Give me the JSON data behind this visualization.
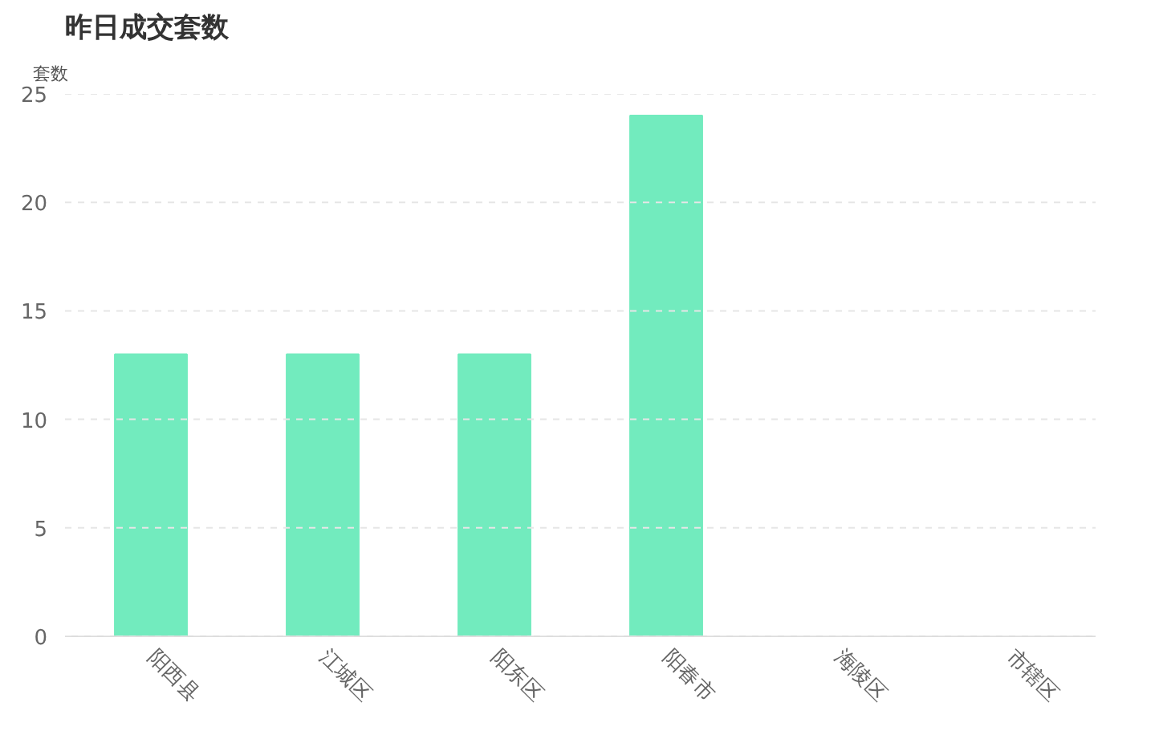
{
  "chart_data": {
    "type": "bar",
    "title": "昨日成交套数",
    "ylabel": "套数",
    "categories": [
      "阳西县",
      "江城区",
      "阳东区",
      "阳春市",
      "海陵区",
      "市辖区"
    ],
    "values": [
      13,
      13,
      13,
      24,
      0,
      0
    ],
    "color": "#72ebbe",
    "ylim": [
      0,
      25
    ],
    "yticks": [
      0,
      5,
      10,
      15,
      20,
      25
    ],
    "grid": "y"
  }
}
